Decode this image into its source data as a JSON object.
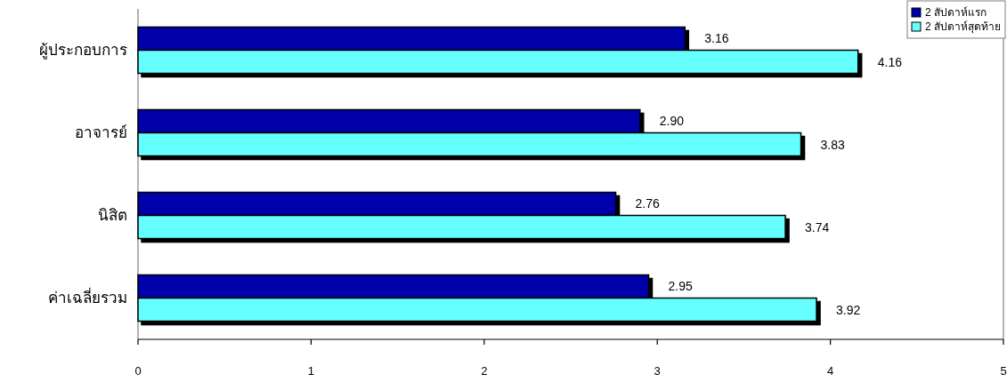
{
  "chart_data": {
    "type": "bar",
    "orientation": "horizontal",
    "categories": [
      "ผู้ประกอบการ",
      "อาจารย์",
      "นิสิต",
      "ค่าเฉลี่ยรวม"
    ],
    "series": [
      {
        "name": "2 สัปดาห์แรก",
        "color": "#0000aa",
        "values": [
          3.16,
          2.9,
          2.76,
          2.95
        ],
        "value_labels": [
          "3.16",
          "2.90",
          "2.76",
          "2.95"
        ]
      },
      {
        "name": "2 สัปดาห์สุดท้าย",
        "color": "#66ffff",
        "values": [
          4.16,
          3.83,
          3.74,
          3.92
        ],
        "value_labels": [
          "4.16",
          "3.83",
          "3.74",
          "3.92"
        ]
      }
    ],
    "xlim": [
      0,
      5
    ],
    "xticks": [
      0,
      1,
      2,
      3,
      4,
      5
    ],
    "legend": "top right"
  }
}
